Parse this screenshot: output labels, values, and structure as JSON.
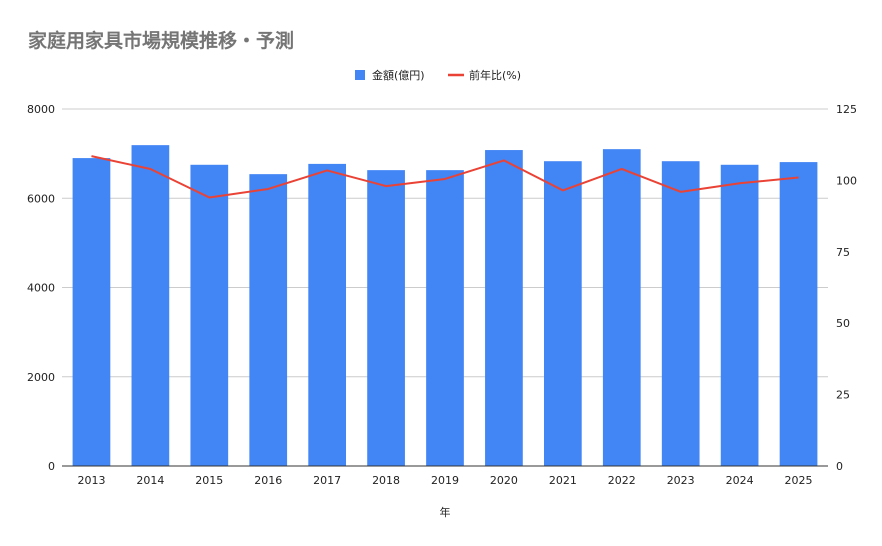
{
  "chart_data": {
    "type": "bar",
    "title": "家庭用家具市場規模推移・予測",
    "xlabel": "年",
    "ylabel": "",
    "y2label": "",
    "categories": [
      "2013",
      "2014",
      "2015",
      "2016",
      "2017",
      "2018",
      "2019",
      "2020",
      "2021",
      "2022",
      "2023",
      "2024",
      "2025"
    ],
    "ylim": [
      0,
      8000
    ],
    "y_ticks": [
      "0",
      "2000",
      "4000",
      "6000",
      "8000"
    ],
    "y2lim": [
      0,
      125
    ],
    "y2_ticks": [
      "0",
      "25",
      "50",
      "75",
      "100",
      "125"
    ],
    "grid": true,
    "legend_position": "top-center",
    "series": [
      {
        "name": "金額(億円)",
        "type": "bar",
        "axis": "left",
        "color": "#4285f4",
        "values": [
          6900,
          7190,
          6750,
          6540,
          6770,
          6630,
          6630,
          7080,
          6830,
          7100,
          6830,
          6750,
          6810
        ]
      },
      {
        "name": "前年比(%)",
        "type": "line",
        "axis": "right",
        "color": "#ea4335",
        "values": [
          108.5,
          104.0,
          94.0,
          97.0,
          103.5,
          98.0,
          100.5,
          107.0,
          96.5,
          104.0,
          96.0,
          99.0,
          101.0
        ]
      }
    ]
  }
}
